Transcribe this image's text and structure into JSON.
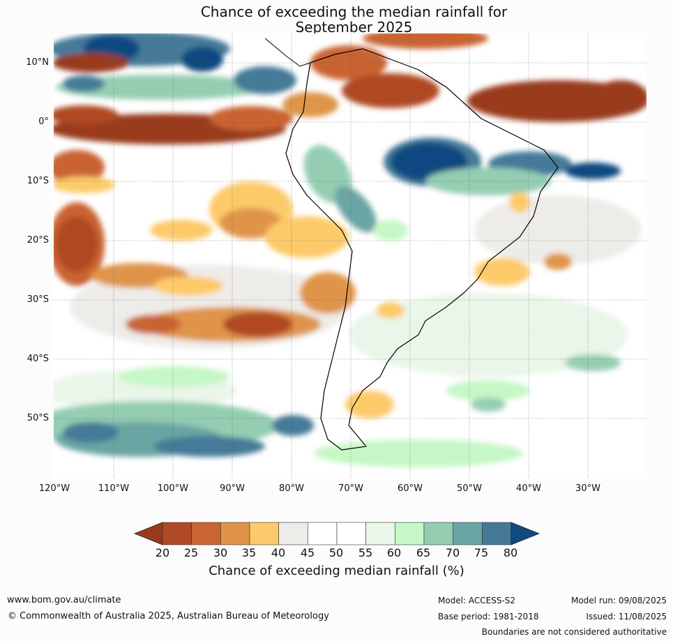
{
  "title_line1": "Chance of exceeding the median rainfall for",
  "title_line2": "September 2025",
  "lat_labels": [
    "10°N",
    "0°",
    "10°S",
    "20°S",
    "30°S",
    "40°S",
    "50°S"
  ],
  "lon_labels": [
    "120°W",
    "110°W",
    "100°W",
    "90°W",
    "80°W",
    "70°W",
    "60°W",
    "50°W",
    "40°W",
    "30°W"
  ],
  "colorbar": {
    "ticks": [
      "20",
      "25",
      "30",
      "35",
      "40",
      "45",
      "50",
      "55",
      "60",
      "65",
      "70",
      "75",
      "80"
    ],
    "colors": [
      "#9a3a1c",
      "#b04a24",
      "#c96433",
      "#df9448",
      "#fdca6b",
      "#eeece8",
      "#ffffff",
      "#ffffff",
      "#e9f6e9",
      "#c6f7c6",
      "#94cdb2",
      "#6aa5a3",
      "#447a98",
      "#0f4a80"
    ],
    "label": "Chance of exceeding median rainfall (%)"
  },
  "footer": {
    "url": "www.bom.gov.au/climate",
    "copyright": "© Commonwealth of Australia 2025, Australian Bureau of Meteorology",
    "model": "Model: ACCESS-S2",
    "model_run": "Model run: 09/08/2025",
    "base_period": "Base period: 1981-2018",
    "issued": "Issued: 11/08/2025",
    "boundaries_note": "Boundaries are not considered authoritative"
  }
}
